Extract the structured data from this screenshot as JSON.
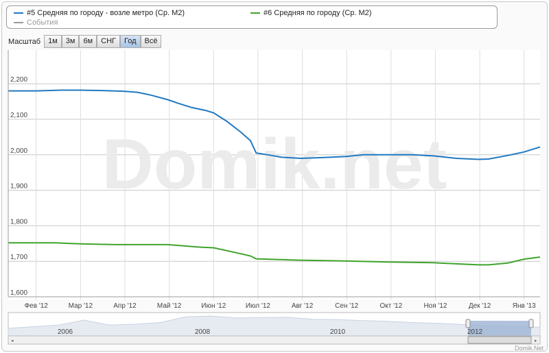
{
  "legend": {
    "items": [
      {
        "label": "#5 Средняя по городу - возле метро (Ср. М2)",
        "color": "#1f78c1"
      },
      {
        "label": "#6 Средняя по городу (Ср. М2)",
        "color": "#3ea32a"
      },
      {
        "label": "События",
        "color": "#999999"
      }
    ]
  },
  "toolbar": {
    "label": "Масштаб",
    "buttons": [
      "1м",
      "3м",
      "6м",
      "СНГ",
      "Год",
      "Всё"
    ],
    "selected": "Год"
  },
  "watermark": "Domik.net",
  "credit": "Domik.Net",
  "chart_data": {
    "type": "line",
    "x_unit": "month index (0 = Фев '12)",
    "xlim": [
      -0.63,
      11.36
    ],
    "ylim": [
      1600,
      2295
    ],
    "yticks": [
      1600,
      1700,
      1800,
      1900,
      2000,
      2100,
      2200
    ],
    "ytick_labels": [
      "1,600",
      "1,700",
      "1,800",
      "1,900",
      "2,000",
      "2,100",
      "2,200"
    ],
    "xticks": [
      0,
      1,
      2,
      3,
      4,
      5,
      6,
      7,
      8,
      9,
      10,
      11
    ],
    "xtick_labels": [
      "Фев '12",
      "Мар '12",
      "Апр '12",
      "Май '12",
      "Июн '12",
      "Июл '12",
      "Авг '12",
      "Сен '12",
      "Окт '12",
      "Ноя '12",
      "Дек '12",
      "Янв '13"
    ],
    "grid": true,
    "series": [
      {
        "name": "#5 Средняя по городу - возле метро (Ср. М2)",
        "color": "#1f78c1",
        "x": [
          -0.63,
          0,
          0.57,
          0.98,
          1.5,
          1.97,
          2.28,
          2.59,
          2.97,
          3.2,
          3.51,
          3.82,
          4,
          4.29,
          4.6,
          4.83,
          4.96,
          5.22,
          5.53,
          5.96,
          6.46,
          6.97,
          7.38,
          7.94,
          8.47,
          8.96,
          9.47,
          9.97,
          10.2,
          10.63,
          11,
          11.36
        ],
        "y": [
          2180,
          2180,
          2182,
          2182,
          2181,
          2179,
          2176,
          2168,
          2155,
          2145,
          2133,
          2125,
          2118,
          2095,
          2065,
          2040,
          2005,
          2000,
          1993,
          1990,
          1992,
          1995,
          2000,
          2000,
          2000,
          1997,
          1990,
          1987,
          1988,
          1998,
          2008,
          2022
        ]
      },
      {
        "name": "#6 Средняя по городу (Ср. М2)",
        "color": "#3ea32a",
        "x": [
          -0.63,
          0.42,
          0.98,
          1.81,
          2.97,
          3.67,
          4,
          4.44,
          4.83,
          4.96,
          5.96,
          6.97,
          7.94,
          8.96,
          9.97,
          10.2,
          10.63,
          11,
          11.36
        ],
        "y": [
          1752,
          1752,
          1749,
          1747,
          1747,
          1740,
          1738,
          1726,
          1715,
          1707,
          1703,
          1701,
          1698,
          1696,
          1690,
          1690,
          1695,
          1706,
          1712
        ]
      }
    ],
    "navigator": {
      "year_labels": [
        "2006",
        "2008",
        "2010",
        "2012"
      ],
      "values": [
        0.25,
        0.35,
        0.45,
        0.75,
        0.45,
        0.5,
        0.6,
        0.95,
        1.0,
        0.88,
        0.9,
        0.92,
        0.8,
        0.78,
        0.72,
        0.68,
        0.6,
        0.55,
        0.48,
        0.4,
        0.35,
        0.32
      ]
    }
  }
}
